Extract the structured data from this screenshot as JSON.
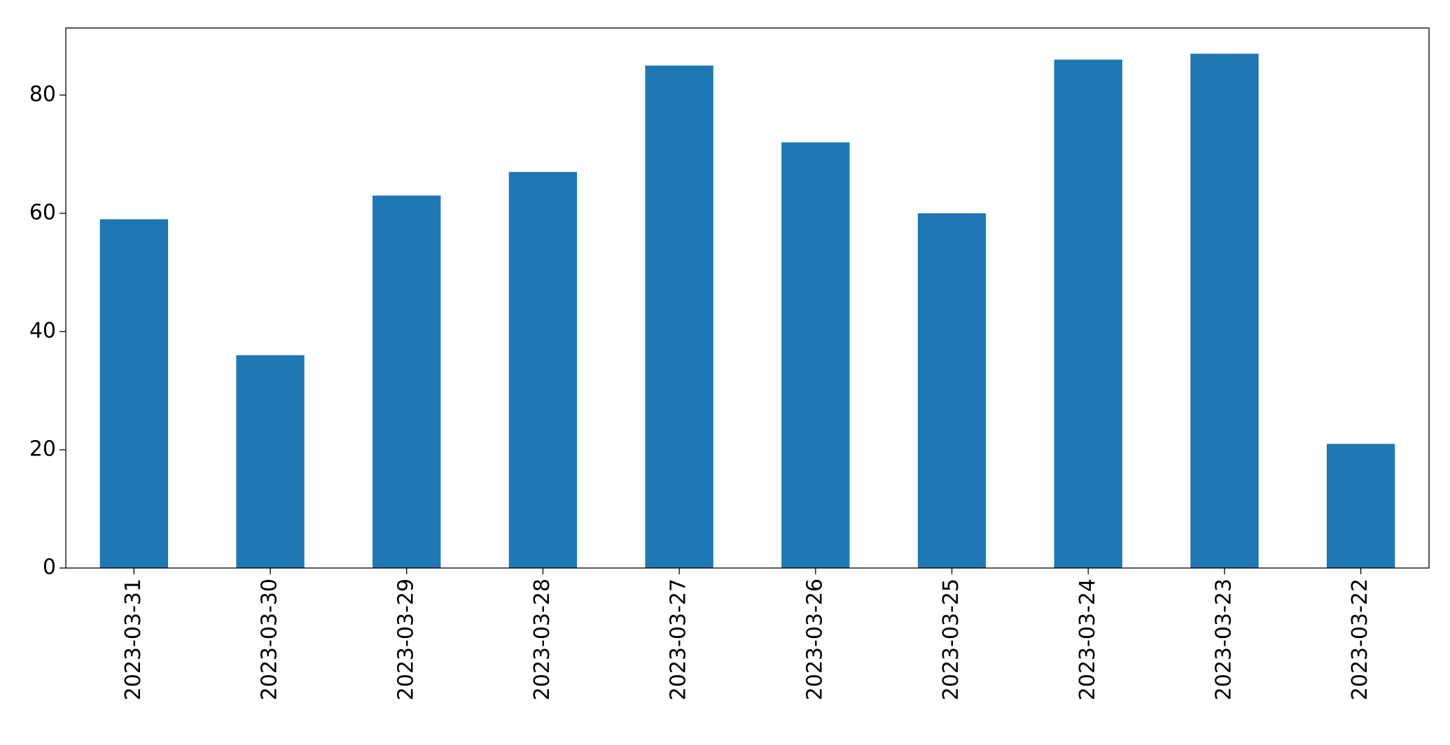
{
  "chart_data": {
    "type": "bar",
    "categories": [
      "2023-03-31",
      "2023-03-30",
      "2023-03-29",
      "2023-03-28",
      "2023-03-27",
      "2023-03-26",
      "2023-03-25",
      "2023-03-24",
      "2023-03-23",
      "2023-03-22"
    ],
    "values": [
      59,
      36,
      63,
      67,
      85,
      72,
      60,
      86,
      87,
      21
    ],
    "color": "#1f77b4",
    "ylim": [
      0,
      91.35
    ],
    "yticks": [
      0,
      20,
      40,
      60,
      80
    ],
    "grid": false
  }
}
